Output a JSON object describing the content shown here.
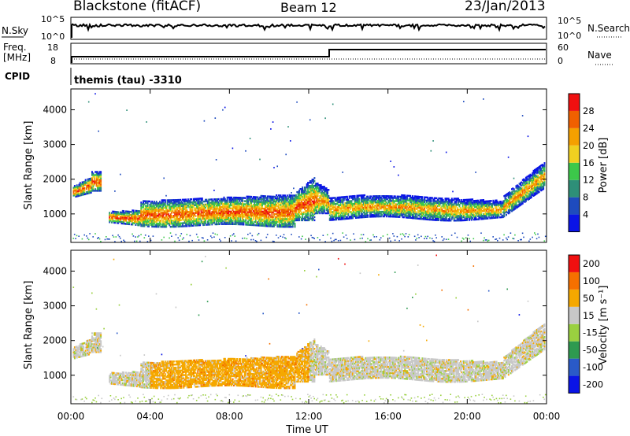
{
  "header": {
    "title": "Blackstone (fitACF)",
    "beam": "Beam 12",
    "date": "23/Jan/2013"
  },
  "top_panels": {
    "nsky_label": "N.Sky",
    "nsky_ticks": [
      "10^5",
      "10^0"
    ],
    "nsky_right_ticks": [
      "10^5",
      "10^0"
    ],
    "nsearch_label": "N.Search",
    "freq_label": "Freq.",
    "freq_unit": "[MHz]",
    "freq_ticks": [
      "18",
      "8"
    ],
    "nave_ticks": [
      "60",
      "0"
    ],
    "nave_label": "Nave",
    "cpid_label": "CPID",
    "cpid_value": "themis (tau) -3310"
  },
  "chart_data": [
    {
      "type": "heatmap",
      "name": "power",
      "ylabel": "Slant Range [km]",
      "yticks": [
        1000,
        2000,
        3000,
        4000
      ],
      "ylim": [
        180,
        4600
      ],
      "xlim_hours": [
        0,
        24
      ],
      "colorbar_label": "Power [dB]",
      "colorbar_ticks": [
        "4",
        "8",
        "12",
        "16",
        "20",
        "24",
        "28"
      ],
      "colors": [
        "#0a14e6",
        "#1e4bbe",
        "#2e8f78",
        "#3cc84a",
        "#f0d020",
        "#f5a000",
        "#f06000",
        "#f01010"
      ]
    },
    {
      "type": "heatmap",
      "name": "velocity",
      "xlabel": "Time UT",
      "ylabel": "Slant Range [km]",
      "yticks": [
        1000,
        2000,
        3000,
        4000
      ],
      "ylim": [
        180,
        4600
      ],
      "xticks": [
        "00:00",
        "04:00",
        "08:00",
        "12:00",
        "16:00",
        "20:00",
        "00:00"
      ],
      "colorbar_label": "Velocity [m s⁻¹]",
      "colorbar_ticks": [
        "200",
        "100",
        "50",
        "15",
        "-15",
        "-50",
        "-100",
        "-200"
      ],
      "colors": [
        "#0a14e6",
        "#2a5ac8",
        "#2e9a50",
        "#9ad040",
        "#c8c8c8",
        "#f5a800",
        "#f57000",
        "#f01010"
      ]
    }
  ]
}
